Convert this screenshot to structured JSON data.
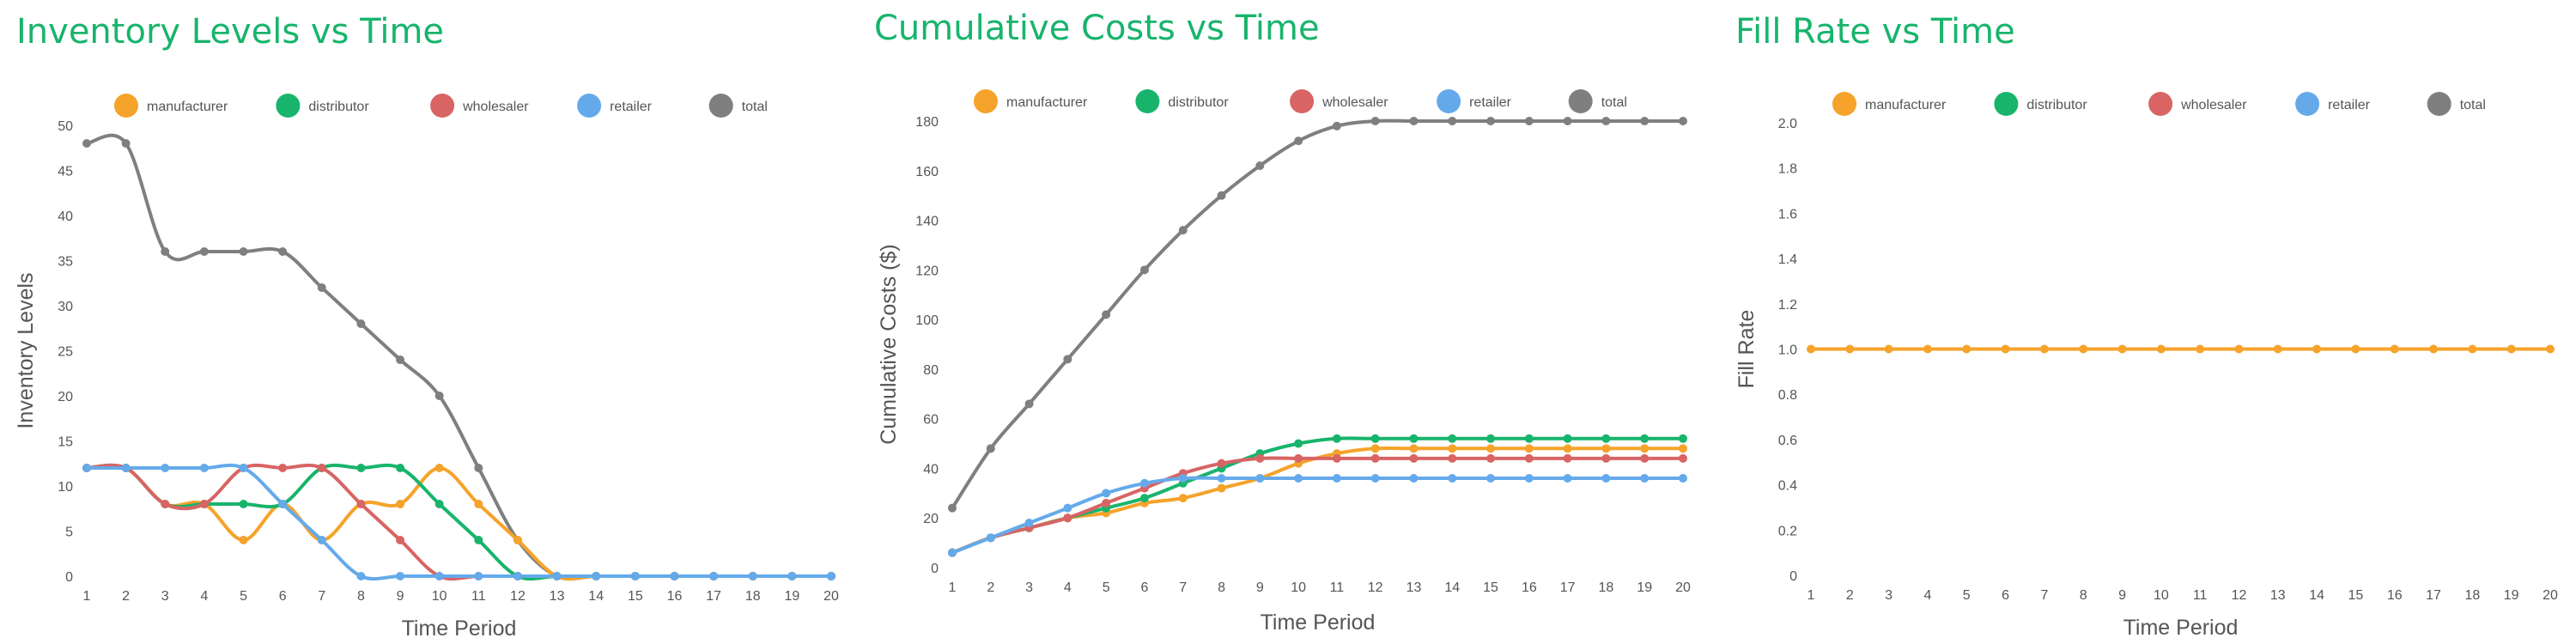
{
  "colors": {
    "manufacturer": "#f5a32a",
    "distributor": "#18b46c",
    "wholesaler": "#d86464",
    "retailer": "#64aaeb",
    "total": "#7f7f7f",
    "title": "#18b46c"
  },
  "chart_data": [
    {
      "type": "line",
      "title": "Inventory Levels vs Time",
      "xlabel": "Time Period",
      "ylabel": "Inventory Levels",
      "x": [
        1,
        2,
        3,
        4,
        5,
        6,
        7,
        8,
        9,
        10,
        11,
        12,
        13,
        14,
        15,
        16,
        17,
        18,
        19,
        20
      ],
      "ylim": [
        0,
        50
      ],
      "yticks": [
        0,
        5,
        10,
        15,
        20,
        25,
        30,
        35,
        40,
        45,
        50
      ],
      "yticklabels": [
        "0",
        "5",
        "10",
        "15",
        "20",
        "25",
        "30",
        "35",
        "40",
        "45",
        "50"
      ],
      "legend_position": "top",
      "series": [
        {
          "name": "manufacturer",
          "values": [
            12,
            12,
            8,
            8,
            4,
            8,
            4,
            8,
            8,
            12,
            8,
            4,
            0,
            0,
            0,
            0,
            0,
            0,
            0,
            0
          ]
        },
        {
          "name": "distributor",
          "values": [
            12,
            12,
            8,
            8,
            8,
            8,
            12,
            12,
            12,
            8,
            4,
            0,
            0,
            0,
            0,
            0,
            0,
            0,
            0,
            0
          ]
        },
        {
          "name": "wholesaler",
          "values": [
            12,
            12,
            8,
            8,
            12,
            12,
            12,
            8,
            4,
            0,
            0,
            0,
            0,
            0,
            0,
            0,
            0,
            0,
            0,
            0
          ]
        },
        {
          "name": "retailer",
          "values": [
            12,
            12,
            12,
            12,
            12,
            8,
            4,
            0,
            0,
            0,
            0,
            0,
            0,
            0,
            0,
            0,
            0,
            0,
            0,
            0
          ]
        },
        {
          "name": "total",
          "values": [
            48,
            48,
            36,
            36,
            36,
            36,
            32,
            28,
            24,
            20,
            12,
            4,
            0,
            0,
            0,
            0,
            0,
            0,
            0,
            0
          ]
        }
      ]
    },
    {
      "type": "line",
      "title": "Cumulative Costs vs Time",
      "xlabel": "Time Period",
      "ylabel": "Cumulative Costs ($)",
      "x": [
        1,
        2,
        3,
        4,
        5,
        6,
        7,
        8,
        9,
        10,
        11,
        12,
        13,
        14,
        15,
        16,
        17,
        18,
        19,
        20
      ],
      "ylim": [
        0,
        180
      ],
      "yticks": [
        0,
        20,
        40,
        60,
        80,
        100,
        120,
        140,
        160,
        180
      ],
      "yticklabels": [
        "0",
        "20",
        "40",
        "60",
        "80",
        "100",
        "120",
        "140",
        "160",
        "180"
      ],
      "legend_position": "top",
      "series": [
        {
          "name": "manufacturer",
          "values": [
            6,
            12,
            16,
            20,
            22,
            26,
            28,
            32,
            36,
            42,
            46,
            48,
            48,
            48,
            48,
            48,
            48,
            48,
            48,
            48
          ]
        },
        {
          "name": "distributor",
          "values": [
            6,
            12,
            16,
            20,
            24,
            28,
            34,
            40,
            46,
            50,
            52,
            52,
            52,
            52,
            52,
            52,
            52,
            52,
            52,
            52
          ]
        },
        {
          "name": "wholesaler",
          "values": [
            6,
            12,
            16,
            20,
            26,
            32,
            38,
            42,
            44,
            44,
            44,
            44,
            44,
            44,
            44,
            44,
            44,
            44,
            44,
            44
          ]
        },
        {
          "name": "retailer",
          "values": [
            6,
            12,
            18,
            24,
            30,
            34,
            36,
            36,
            36,
            36,
            36,
            36,
            36,
            36,
            36,
            36,
            36,
            36,
            36,
            36
          ]
        },
        {
          "name": "total",
          "values": [
            24,
            48,
            66,
            84,
            102,
            120,
            136,
            150,
            162,
            172,
            178,
            180,
            180,
            180,
            180,
            180,
            180,
            180,
            180,
            180
          ]
        }
      ]
    },
    {
      "type": "line",
      "title": "Fill Rate vs Time",
      "xlabel": "Time Period",
      "ylabel": "Fill Rate",
      "x": [
        1,
        2,
        3,
        4,
        5,
        6,
        7,
        8,
        9,
        10,
        11,
        12,
        13,
        14,
        15,
        16,
        17,
        18,
        19,
        20
      ],
      "ylim": [
        0,
        2
      ],
      "yticks": [
        0,
        0.2,
        0.4,
        0.6,
        0.8,
        1.0,
        1.2,
        1.4,
        1.6,
        1.8,
        2.0
      ],
      "yticklabels": [
        "0",
        "0.2",
        "0.4",
        "0.6",
        "0.8",
        "1.0",
        "1.2",
        "1.4",
        "1.6",
        "1.8",
        "2.0"
      ],
      "legend_position": "top",
      "legend_entries": [
        "manufacturer",
        "distributor",
        "wholesaler",
        "retailer",
        "total"
      ],
      "series": [
        {
          "name": "manufacturer",
          "values": [
            1,
            1,
            1,
            1,
            1,
            1,
            1,
            1,
            1,
            1,
            1,
            1,
            1,
            1,
            1,
            1,
            1,
            1,
            1,
            1
          ]
        }
      ]
    }
  ]
}
